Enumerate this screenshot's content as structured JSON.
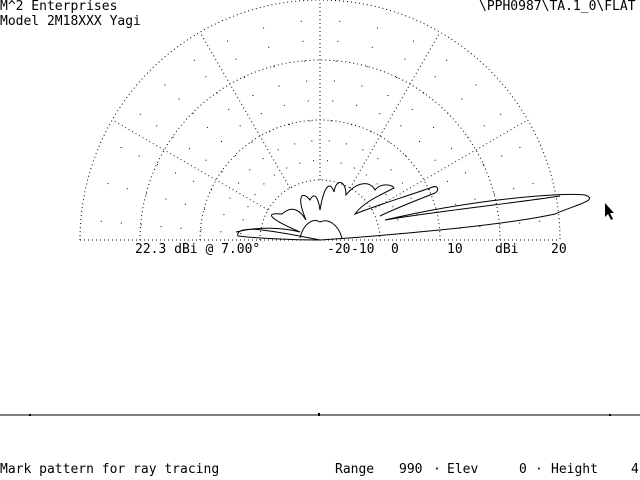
{
  "header": {
    "company": "M^2 Enterprises",
    "model": "Model 2M18XXX Yagi",
    "file_path": "\\PPH0987\\TA.1_0\\FLAT"
  },
  "plot": {
    "max_gain_label": "22.3 dBi @ 7.00°",
    "scale_labels": [
      "-20",
      "-10",
      "0",
      "10",
      "dBi",
      "20"
    ]
  },
  "status": {
    "prompt": "Mark pattern for ray tracing",
    "range_label": "Range",
    "range_value": "990",
    "elev_label": "Elev",
    "elev_value": "0",
    "height_label": "Height",
    "height_value": "4"
  },
  "icons": {
    "cursor": "mouse-pointer-icon"
  }
}
